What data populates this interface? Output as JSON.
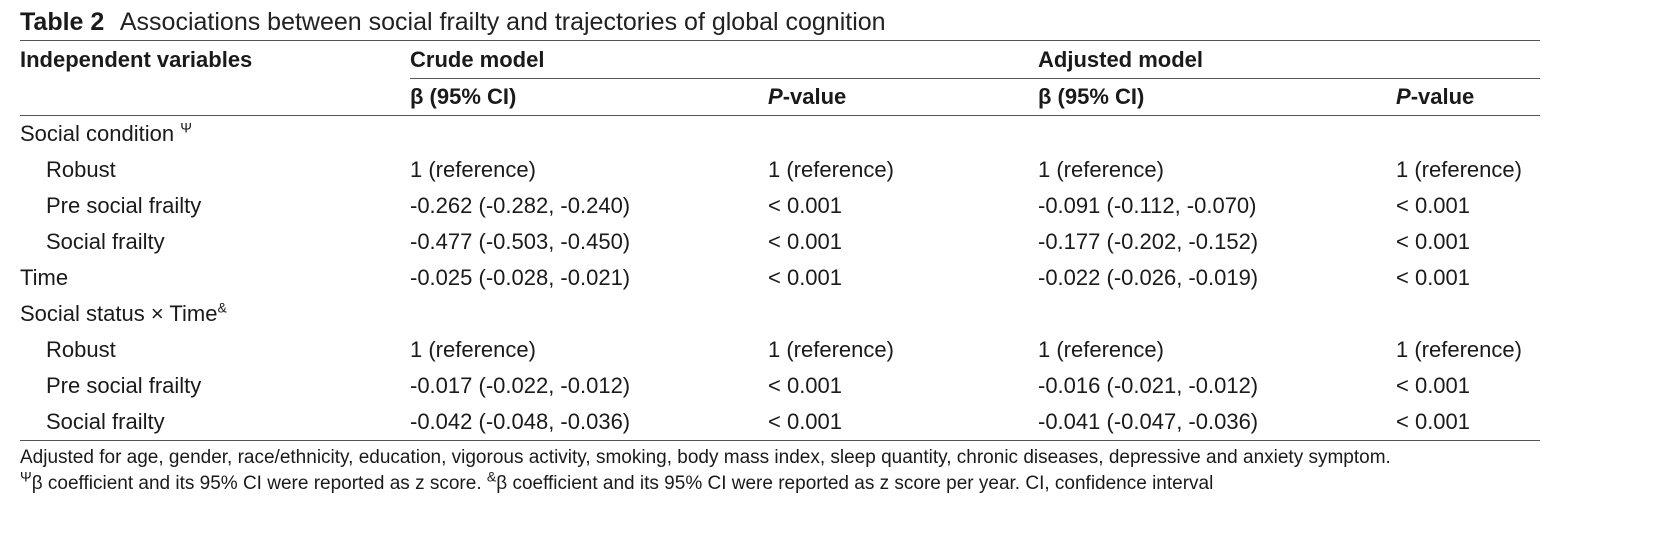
{
  "caption": {
    "label": "Table 2",
    "title": "Associations between social frailty and trajectories of global cognition"
  },
  "header": {
    "independent": "Independent variables",
    "crude": "Crude model",
    "adjusted": "Adjusted model",
    "beta": "β (95% CI)",
    "p_italic": "P",
    "p_rest": "-value"
  },
  "rows": [
    {
      "label": "Social condition ",
      "sup": "Ψ",
      "c1": "",
      "c2": "",
      "c3": "",
      "c4": ""
    },
    {
      "label": "Robust",
      "c1": "1 (reference)",
      "c2": "1 (reference)",
      "c3": "1 (reference)",
      "c4": "1 (reference)"
    },
    {
      "label": "Pre social frailty",
      "c1": "-0.262 (-0.282, -0.240)",
      "c2": "< 0.001",
      "c3": "-0.091 (-0.112, -0.070)",
      "c4": "< 0.001"
    },
    {
      "label": "Social frailty",
      "c1": "-0.477 (-0.503, -0.450)",
      "c2": "< 0.001",
      "c3": "-0.177 (-0.202, -0.152)",
      "c4": "< 0.001"
    },
    {
      "label": "Time",
      "c1": "-0.025 (-0.028, -0.021)",
      "c2": "< 0.001",
      "c3": "-0.022 (-0.026, -0.019)",
      "c4": "< 0.001"
    },
    {
      "label": "Social status × Time",
      "sup": "&",
      "c1": "",
      "c2": "",
      "c3": "",
      "c4": ""
    },
    {
      "label": "Robust",
      "c1": "1 (reference)",
      "c2": "1 (reference)",
      "c3": "1 (reference)",
      "c4": "1 (reference)"
    },
    {
      "label": "Pre social frailty",
      "c1": "-0.017 (-0.022, -0.012)",
      "c2": "< 0.001",
      "c3": "-0.016 (-0.021, -0.012)",
      "c4": "< 0.001"
    },
    {
      "label": "Social frailty",
      "c1": "-0.042 (-0.048, -0.036)",
      "c2": "< 0.001",
      "c3": "-0.041 (-0.047, -0.036)",
      "c4": "< 0.001"
    }
  ],
  "footnotes": {
    "line1": "Adjusted for age, gender, race/ethnicity, education, vigorous activity, smoking, body mass index, sleep quantity, chronic diseases, depressive and anxiety symptom.",
    "sup1": "Ψ",
    "line2a": "β coefficient and its 95% CI were reported as z score. ",
    "sup2": "&",
    "line2b": "β coefficient and its 95% CI were reported as z score per year. CI, confidence interval"
  }
}
